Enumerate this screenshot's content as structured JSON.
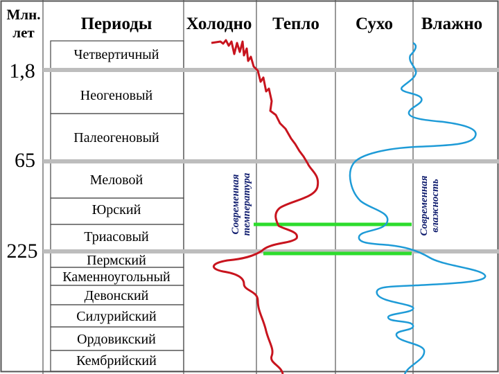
{
  "header": {
    "age_unit_line1": "Млн.",
    "age_unit_line2": "лет",
    "periods": "Периоды",
    "cold": "Холодно",
    "warm": "Тепло",
    "dry": "Сухо",
    "wet": "Влажно"
  },
  "ages": [
    "1,8",
    "65",
    "225"
  ],
  "periods": [
    "Четвертичный",
    "Неогеновый",
    "Палеогеновый",
    "Меловой",
    "Юрский",
    "Триасовый",
    "Пермский",
    "Каменноугольный",
    "Девонский",
    "Силурийский",
    "Ордовикский",
    "Кембрийский"
  ],
  "notes": {
    "temperature_line1": "Современная",
    "temperature_line2": "температура",
    "humidity_line1": "Современная",
    "humidity_line2": "влажность"
  },
  "colors": {
    "temperature_curve": "#c8141e",
    "humidity_curve": "#1e9bd7",
    "era_boundary": "#bdbdbd",
    "correlation_line": "#2ddc2d",
    "note_text": "#0f1c6e"
  }
}
